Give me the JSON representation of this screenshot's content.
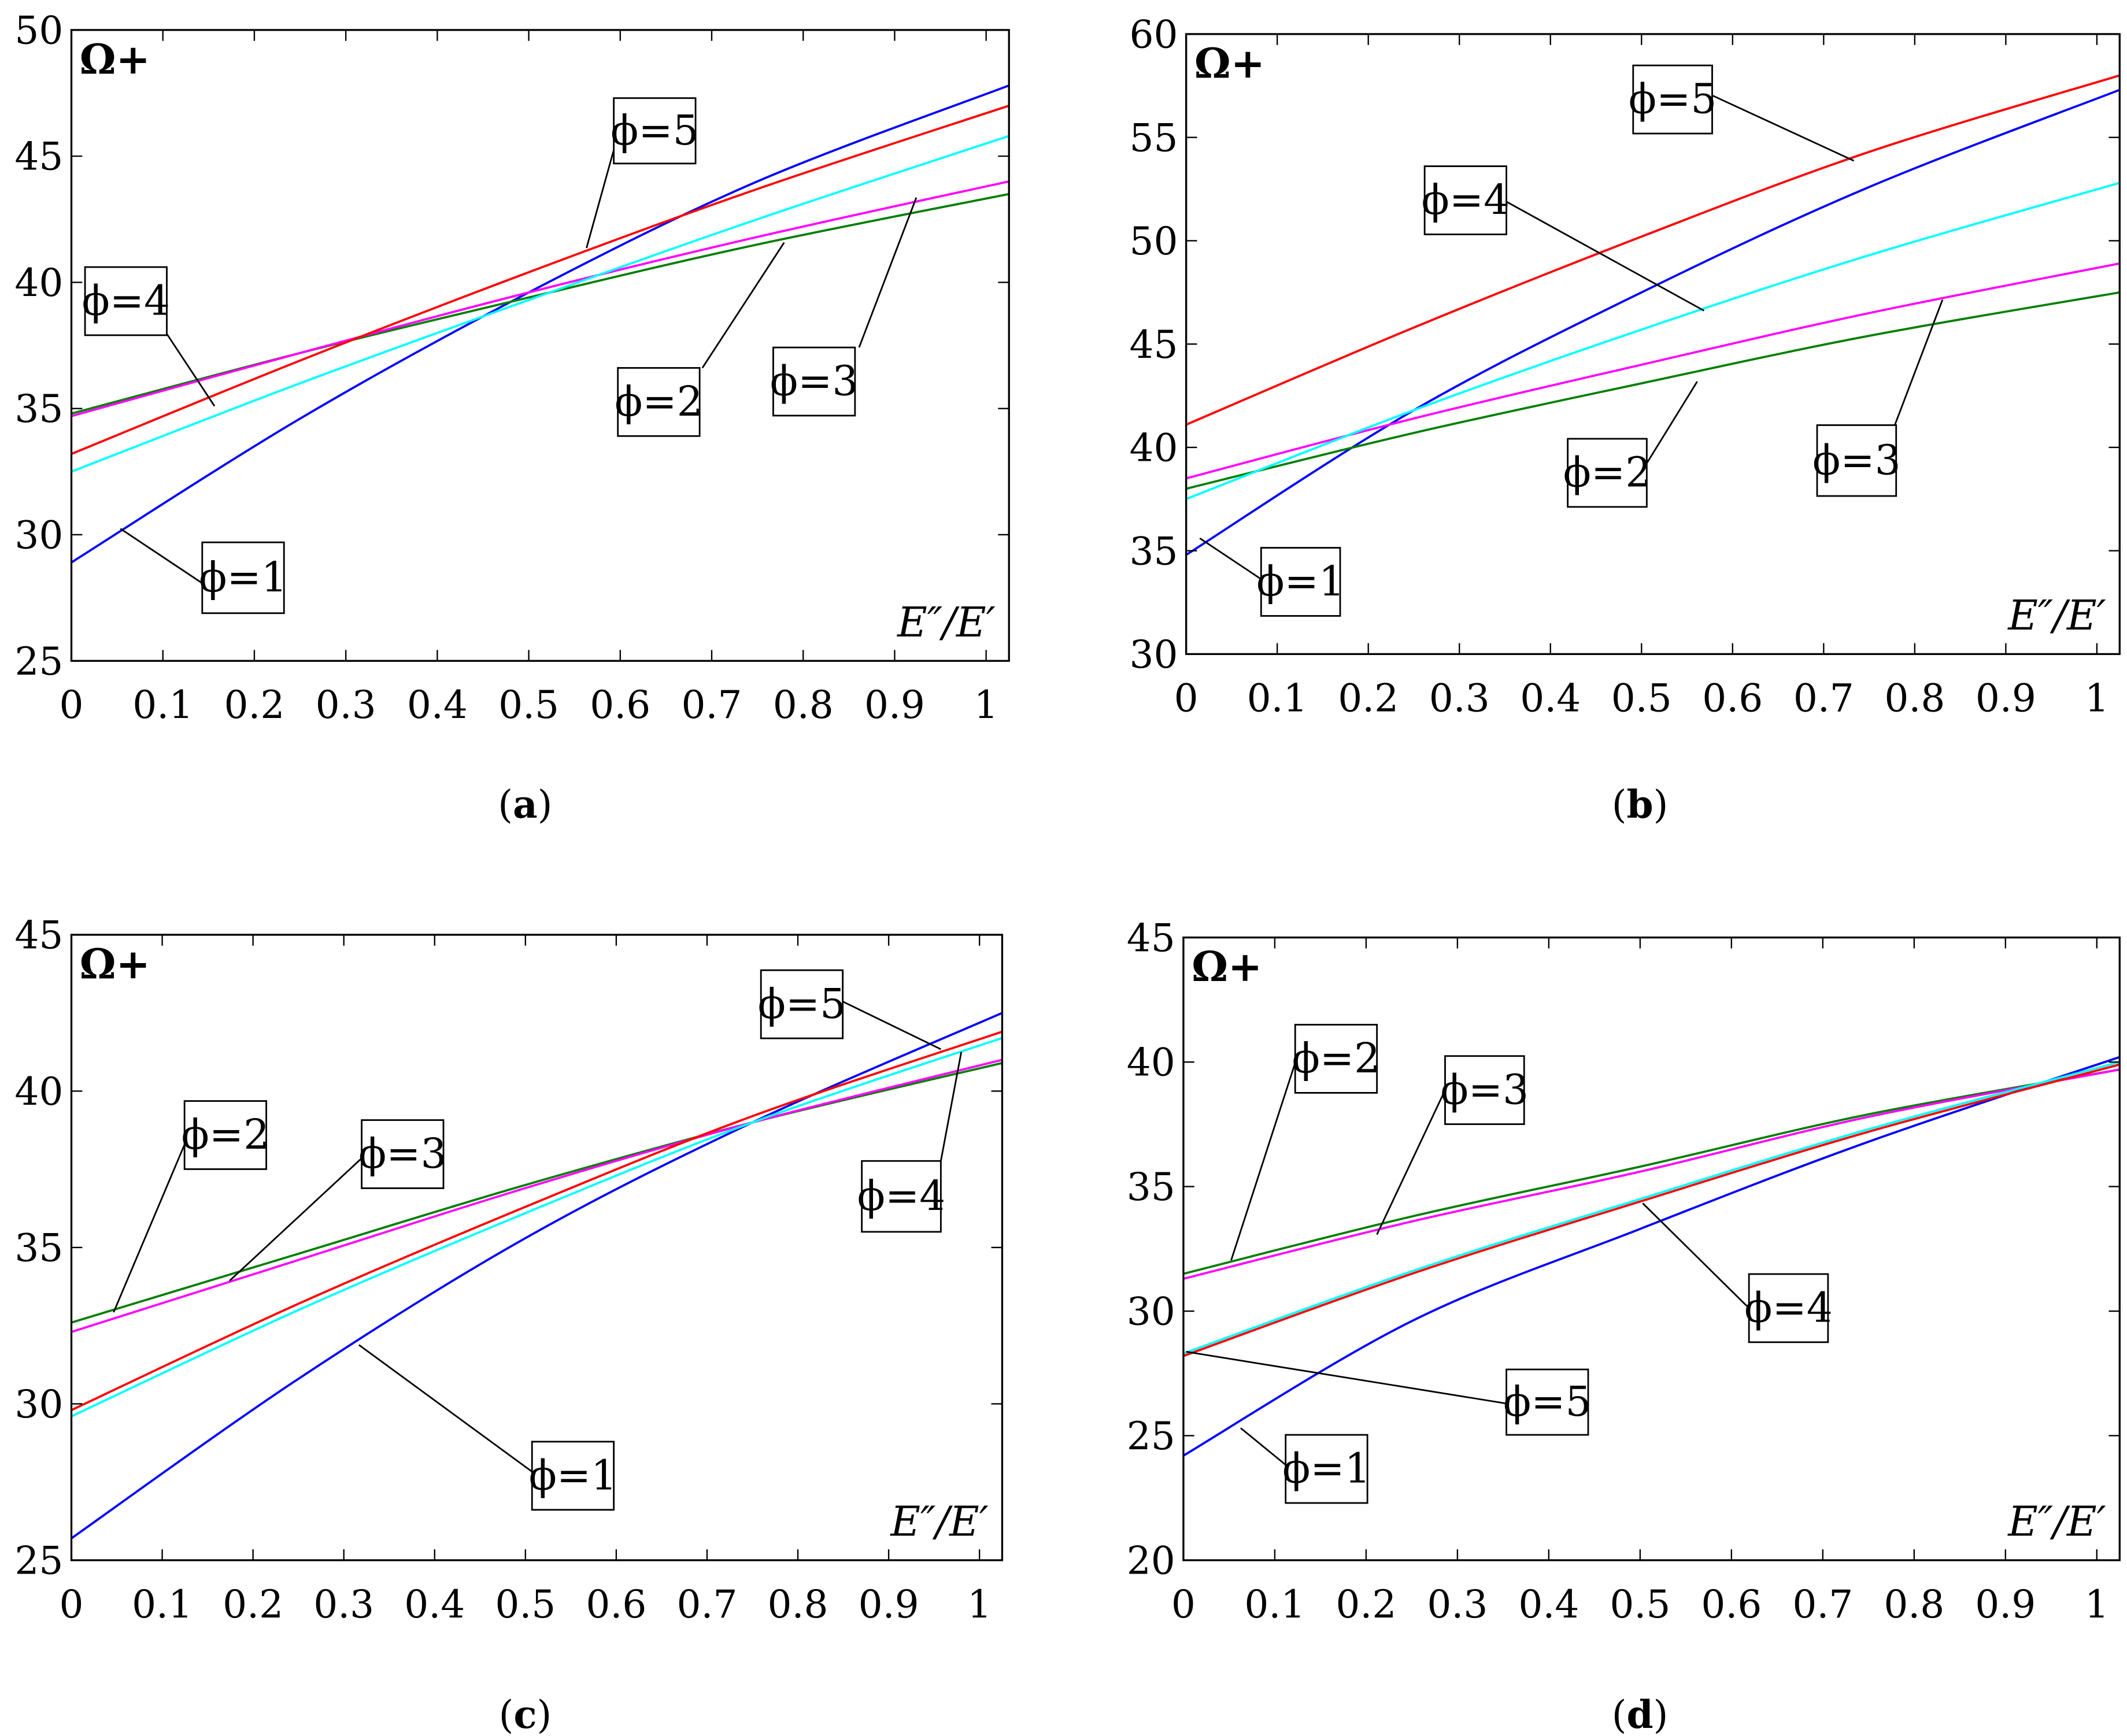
{
  "colors": {
    "phi1": "#0000ff",
    "phi2": "#007f00",
    "phi3": "#ff00ff",
    "phi4": "#00ffff",
    "phi5": "#ff0000"
  },
  "chart_data": [
    {
      "type": "line",
      "caption": "(a)",
      "ylabel": "Ω+",
      "xlabel": "E″/E′",
      "xlim": [
        0,
        1.025
      ],
      "ylim": [
        25,
        50
      ],
      "xticks": [
        "0",
        "0.1",
        "0.2",
        "0.3",
        "0.4",
        "0.5",
        "0.6",
        "0.7",
        "0.8",
        "0.9",
        "1"
      ],
      "yticks": [
        "25",
        "30",
        "35",
        "40",
        "45",
        "50"
      ],
      "x": [
        0,
        0.25,
        0.5,
        0.75,
        1.025
      ],
      "series": [
        {
          "name": "ϕ=1",
          "color": "#0000ff",
          "values": [
            28.9,
            34.6,
            39.6,
            44.0,
            47.8
          ]
        },
        {
          "name": "ϕ=2",
          "color": "#007f00",
          "values": [
            34.8,
            37.2,
            39.4,
            41.5,
            43.5
          ]
        },
        {
          "name": "ϕ=3",
          "color": "#ff00ff",
          "values": [
            34.7,
            37.2,
            39.6,
            41.8,
            44.0
          ]
        },
        {
          "name": "ϕ=4",
          "color": "#00ffff",
          "values": [
            32.5,
            36.0,
            39.3,
            42.5,
            45.8
          ]
        },
        {
          "name": "ϕ=5",
          "color": "#ff0000",
          "values": [
            33.2,
            36.9,
            40.4,
            43.7,
            47.0
          ]
        }
      ]
    },
    {
      "type": "line",
      "caption": "(b)",
      "ylabel": "Ω+",
      "xlabel": "E″/E′",
      "xlim": [
        0,
        1.025
      ],
      "ylim": [
        30,
        60
      ],
      "xticks": [
        "0",
        "0.1",
        "0.2",
        "0.3",
        "0.4",
        "0.5",
        "0.6",
        "0.7",
        "0.8",
        "0.9",
        "1"
      ],
      "yticks": [
        "30",
        "35",
        "40",
        "45",
        "50",
        "55",
        "60"
      ],
      "x": [
        0,
        0.25,
        0.5,
        0.75,
        1.025
      ],
      "series": [
        {
          "name": "ϕ=1",
          "color": "#0000ff",
          "values": [
            34.8,
            41.8,
            47.5,
            52.6,
            57.3
          ]
        },
        {
          "name": "ϕ=2",
          "color": "#007f00",
          "values": [
            38.0,
            40.7,
            43.1,
            45.4,
            47.5
          ]
        },
        {
          "name": "ϕ=3",
          "color": "#ff00ff",
          "values": [
            38.5,
            41.4,
            44.0,
            46.5,
            48.9
          ]
        },
        {
          "name": "ϕ=4",
          "color": "#00ffff",
          "values": [
            37.5,
            41.8,
            45.7,
            49.3,
            52.8
          ]
        },
        {
          "name": "ϕ=5",
          "color": "#ff0000",
          "values": [
            41.1,
            45.8,
            50.2,
            54.3,
            58.0
          ]
        }
      ]
    },
    {
      "type": "line",
      "caption": "(c)",
      "ylabel": "Ω+",
      "xlabel": "E″/E′",
      "xlim": [
        0,
        1.025
      ],
      "ylim": [
        25,
        45
      ],
      "xticks": [
        "0",
        "0.1",
        "0.2",
        "0.3",
        "0.4",
        "0.5",
        "0.6",
        "0.7",
        "0.8",
        "0.9",
        "1"
      ],
      "yticks": [
        "25",
        "30",
        "35",
        "40",
        "45"
      ],
      "x": [
        0,
        0.25,
        0.5,
        0.75,
        1.025
      ],
      "series": [
        {
          "name": "ϕ=1",
          "color": "#0000ff",
          "values": [
            25.7,
            30.8,
            35.3,
            39.0,
            42.5
          ]
        },
        {
          "name": "ϕ=2",
          "color": "#007f00",
          "values": [
            32.6,
            34.8,
            37.0,
            39.0,
            40.9
          ]
        },
        {
          "name": "ϕ=3",
          "color": "#ff00ff",
          "values": [
            32.3,
            34.6,
            36.9,
            39.0,
            41.0
          ]
        },
        {
          "name": "ϕ=4",
          "color": "#00ffff",
          "values": [
            29.6,
            33.0,
            36.1,
            39.0,
            41.7
          ]
        },
        {
          "name": "ϕ=5",
          "color": "#ff0000",
          "values": [
            29.8,
            33.2,
            36.3,
            39.2,
            41.9
          ]
        }
      ]
    },
    {
      "type": "line",
      "caption": "(d)",
      "ylabel": "Ω+",
      "xlabel": "E″/E′",
      "xlim": [
        0,
        1.025
      ],
      "ylim": [
        20,
        45
      ],
      "xticks": [
        "0",
        "0.1",
        "0.2",
        "0.3",
        "0.4",
        "0.5",
        "0.6",
        "0.7",
        "0.8",
        "0.9",
        "1"
      ],
      "yticks": [
        "20",
        "25",
        "30",
        "35",
        "40",
        "45"
      ],
      "x": [
        0,
        0.25,
        0.5,
        0.75,
        1.025
      ],
      "series": [
        {
          "name": "ϕ=1",
          "color": "#0000ff",
          "values": [
            24.2,
            29.6,
            33.3,
            36.8,
            40.2
          ]
        },
        {
          "name": "ϕ=2",
          "color": "#007f00",
          "values": [
            31.5,
            33.8,
            35.8,
            37.9,
            39.7
          ]
        },
        {
          "name": "ϕ=3",
          "color": "#ff00ff",
          "values": [
            31.3,
            33.6,
            35.6,
            37.8,
            39.7
          ]
        },
        {
          "name": "ϕ=4",
          "color": "#00ffff",
          "values": [
            28.3,
            31.6,
            34.5,
            37.3,
            40.0
          ]
        },
        {
          "name": "ϕ=5",
          "color": "#ff0000",
          "values": [
            28.2,
            31.5,
            34.4,
            37.2,
            39.9
          ]
        }
      ]
    }
  ]
}
